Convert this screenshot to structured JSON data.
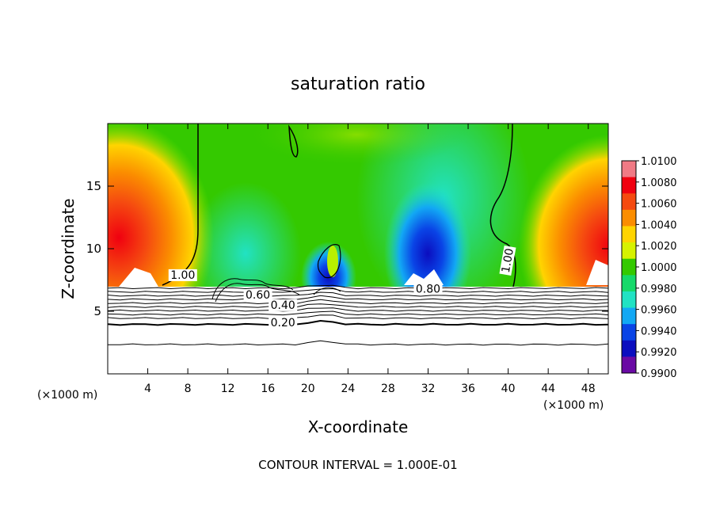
{
  "chart_data": {
    "type": "heatmap",
    "title": "saturation ratio",
    "xlabel": "X-coordinate",
    "ylabel": "Z-coordinate",
    "x_unit_left": "(×1000 m)",
    "x_unit_right": "(×1000 m)",
    "footer": "CONTOUR INTERVAL = 1.000E-01",
    "xlim": [
      0,
      50
    ],
    "ylim": [
      0,
      20
    ],
    "x_ticks": [
      "4",
      "8",
      "12",
      "16",
      "20",
      "24",
      "28",
      "32",
      "36",
      "40",
      "44",
      "48"
    ],
    "y_ticks": [
      "5",
      "10",
      "15"
    ],
    "colorbar": {
      "labels": [
        "1.0100",
        "1.0080",
        "1.0060",
        "1.0040",
        "1.0020",
        "1.0000",
        "0.9980",
        "0.9960",
        "0.9940",
        "0.9920",
        "0.9900"
      ],
      "colors": [
        "#f07a85",
        "#f00010",
        "#f54a10",
        "#fb8d00",
        "#ffd400",
        "#d7f200",
        "#34c900",
        "#16d96a",
        "#21e2c3",
        "#12a8f4",
        "#0a44e6",
        "#0b0dbf",
        "#6a0aa4"
      ]
    },
    "contour_labels": [
      {
        "text": "1.00",
        "x": 7.5,
        "z": 7.6
      },
      {
        "text": "0.60",
        "x": 15.0,
        "z": 6.0
      },
      {
        "text": "0.40",
        "x": 17.5,
        "z": 5.2
      },
      {
        "text": "0.20",
        "x": 17.5,
        "z": 3.8
      },
      {
        "text": "0.80",
        "x": 32.0,
        "z": 6.5
      },
      {
        "text": "1.00",
        "x": 40.3,
        "z": 9.0
      }
    ],
    "contour_levels_below": [
      6.85,
      6.55,
      6.25,
      5.95,
      5.65,
      5.35,
      5.05,
      4.75,
      4.45,
      3.95,
      2.35
    ]
  }
}
